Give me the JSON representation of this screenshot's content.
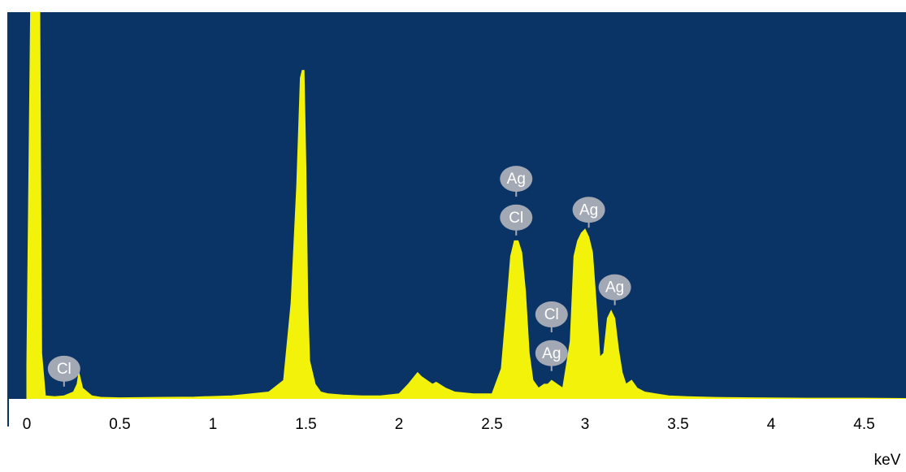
{
  "chart_data": {
    "type": "area",
    "title": "",
    "xlabel": "keV",
    "ylabel": "",
    "xlim": [
      -0.05,
      4.75
    ],
    "ylim": [
      0,
      100
    ],
    "grid": false,
    "colors": {
      "background": "#0b3466",
      "fill": "#f2f20a",
      "axis": "#ffffff",
      "badge": "#a3a9b4"
    },
    "x_ticks": [
      0,
      0.5,
      1,
      1.5,
      2,
      2.5,
      3,
      3.5,
      4,
      4.5
    ],
    "x_tick_labels": [
      "0",
      "0.5",
      "1",
      "1.5",
      "2",
      "2.5",
      "3",
      "3.5",
      "4",
      "4.5"
    ],
    "spectrum": {
      "x": [
        0,
        0.02,
        0.03,
        0.07,
        0.08,
        0.1,
        0.15,
        0.2,
        0.25,
        0.27,
        0.28,
        0.3,
        0.35,
        0.4,
        0.5,
        0.7,
        0.9,
        1.1,
        1.3,
        1.38,
        1.42,
        1.45,
        1.47,
        1.48,
        1.49,
        1.5,
        1.51,
        1.52,
        1.55,
        1.58,
        1.62,
        1.7,
        1.8,
        1.9,
        2.0,
        2.05,
        2.1,
        2.12,
        2.15,
        2.18,
        2.2,
        2.25,
        2.3,
        2.4,
        2.5,
        2.55,
        2.58,
        2.6,
        2.62,
        2.64,
        2.66,
        2.68,
        2.7,
        2.72,
        2.75,
        2.78,
        2.8,
        2.82,
        2.85,
        2.88,
        2.92,
        2.94,
        2.96,
        2.98,
        3.0,
        3.02,
        3.04,
        3.06,
        3.08,
        3.1,
        3.12,
        3.14,
        3.16,
        3.18,
        3.2,
        3.22,
        3.25,
        3.28,
        3.32,
        3.38,
        3.45,
        3.55,
        3.7,
        3.9,
        4.2,
        4.5,
        4.75
      ],
      "y": [
        9,
        100,
        100,
        100,
        12,
        1,
        0.8,
        1,
        2,
        4,
        7,
        3,
        1,
        0.6,
        0.5,
        0.6,
        0.7,
        1,
        2,
        5,
        25,
        55,
        83,
        85,
        85,
        60,
        25,
        10,
        4,
        2,
        1.5,
        1.2,
        1,
        1,
        1.5,
        4,
        7,
        6,
        5,
        4,
        4.5,
        3,
        2,
        1.5,
        1.5,
        8,
        25,
        37,
        41,
        41,
        38,
        28,
        12,
        5,
        3,
        4,
        4,
        5,
        4,
        3,
        15,
        37,
        41,
        43,
        44,
        42,
        38,
        25,
        11,
        12,
        21,
        23,
        21,
        13,
        7,
        4,
        5,
        3,
        2,
        1.5,
        1,
        0.8,
        0.6,
        0.5,
        0.4,
        0.4,
        0.3
      ]
    },
    "annotations": [
      {
        "text": "Cl",
        "x": 0.2,
        "y": 8
      },
      {
        "text": "Ag",
        "x": 2.63,
        "y": 57
      },
      {
        "text": "Cl",
        "x": 2.63,
        "y": 47
      },
      {
        "text": "Cl",
        "x": 2.82,
        "y": 22
      },
      {
        "text": "Ag",
        "x": 2.82,
        "y": 12
      },
      {
        "text": "Ag",
        "x": 3.02,
        "y": 49
      },
      {
        "text": "Ag",
        "x": 3.16,
        "y": 29
      }
    ]
  }
}
